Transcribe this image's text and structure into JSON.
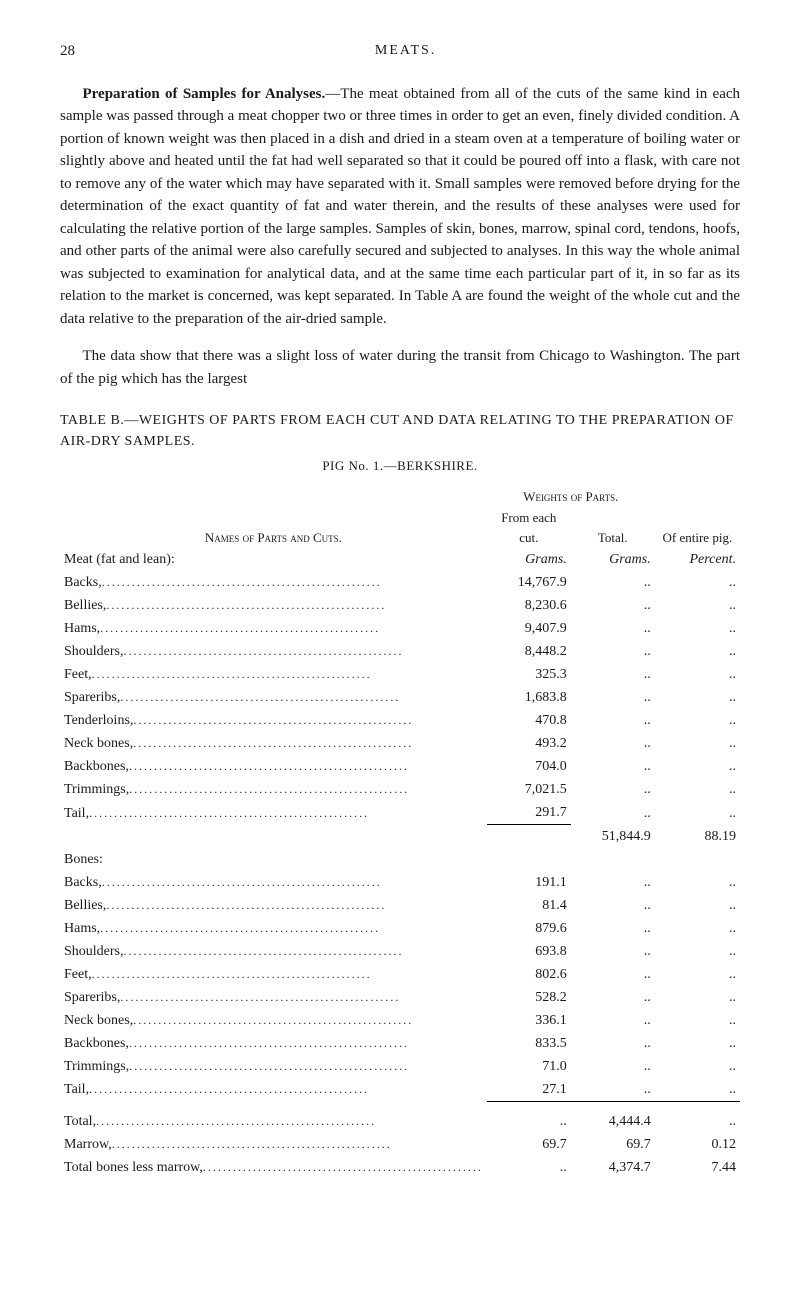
{
  "page": {
    "number": "28",
    "header": "MEATS."
  },
  "paragraphs": {
    "p1_lead": "Preparation of Samples for Analyses.",
    "p1": "—The meat obtained from all of the cuts of the same kind in each sample was passed through a meat chopper two or three times in order to get an even, finely divided condition. A portion of known weight was then placed in a dish and dried in a steam oven at a temperature of boiling water or slightly above and heated until the fat had well separated so that it could be poured off into a flask, with care not to remove any of the water which may have separated with it. Small samples were removed before drying for the determination of the exact quantity of fat and water therein, and the results of these analyses were used for calculating the relative portion of the large samples. Samples of skin, bones, marrow, spinal cord, tendons, hoofs, and other parts of the animal were also carefully secured and subjected to analyses. In this way the whole animal was subjected to examination for analytical data, and at the same time each particular part of it, in so far as its relation to the market is concerned, was kept separated. In Table A are found the weight of the whole cut and the data relative to the preparation of the air-dried sample.",
    "p2": "The data show that there was a slight loss of water during the transit from Chicago to Washington. The part of the pig which has the largest"
  },
  "table": {
    "title": "TABLE B.—WEIGHTS OF PARTS FROM EACH CUT AND DATA RELATING TO THE PREPARATION OF AIR-DRY SAMPLES.",
    "subtitle": "PIG No. 1.—BERKSHIRE.",
    "headers": {
      "names": "Names of Parts and Cuts.",
      "weights": "Weights of Parts.",
      "from": "From each cut.",
      "total": "Total.",
      "of_entire": "Of entire pig."
    },
    "units": {
      "grams": "Grams.",
      "percent": "Percent."
    },
    "sections": {
      "meat": "Meat (fat and lean):",
      "bones": "Bones:"
    },
    "meat_rows": [
      {
        "label": "Backs,",
        "from": "14,767.9"
      },
      {
        "label": "Bellies,",
        "from": "8,230.6"
      },
      {
        "label": "Hams,",
        "from": "9,407.9"
      },
      {
        "label": "Shoulders,",
        "from": "8,448.2"
      },
      {
        "label": "Feet,",
        "from": "325.3"
      },
      {
        "label": "Spareribs,",
        "from": "1,683.8"
      },
      {
        "label": "Tenderloins,",
        "from": "470.8"
      },
      {
        "label": "Neck bones,",
        "from": "493.2"
      },
      {
        "label": "Backbones,",
        "from": "704.0"
      },
      {
        "label": "Trimmings,",
        "from": "7,021.5"
      },
      {
        "label": "Tail,",
        "from": "291.7"
      }
    ],
    "meat_total": {
      "total": "51,844.9",
      "pig": "88.19"
    },
    "bones_rows": [
      {
        "label": "Backs,",
        "from": "191.1"
      },
      {
        "label": "Bellies,",
        "from": "81.4"
      },
      {
        "label": "Hams,",
        "from": "879.6"
      },
      {
        "label": "Shoulders,",
        "from": "693.8"
      },
      {
        "label": "Feet,",
        "from": "802.6"
      },
      {
        "label": "Spareribs,",
        "from": "528.2"
      },
      {
        "label": "Neck bones,",
        "from": "336.1"
      },
      {
        "label": "Backbones,",
        "from": "833.5"
      },
      {
        "label": "Trimmings,",
        "from": "71.0"
      },
      {
        "label": "Tail,",
        "from": "27.1"
      }
    ],
    "footer_rows": [
      {
        "label": "Total,",
        "from": "..",
        "total": "4,444.4",
        "pig": ".."
      },
      {
        "label": "Marrow,",
        "from": "69.7",
        "total": "69.7",
        "pig": "0.12"
      },
      {
        "label": "Total bones less marrow,",
        "from": "..",
        "total": "4,374.7",
        "pig": "7.44"
      }
    ],
    "placeholder": ".."
  }
}
